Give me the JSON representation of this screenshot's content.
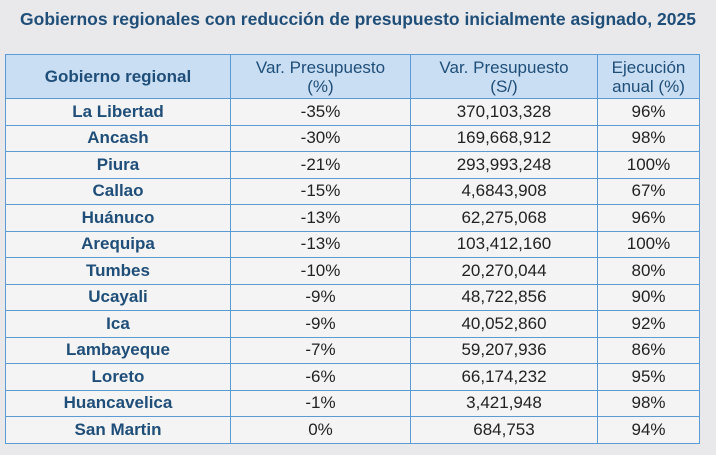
{
  "title": "Gobiernos regionales con reducción de presupuesto inicialmente asignado, 2025",
  "table": {
    "headers": [
      [
        "Gobierno regional"
      ],
      [
        "Var. Presupuesto",
        "(%)"
      ],
      [
        "Var. Presupuesto",
        "(S/)"
      ],
      [
        "Ejecución",
        "anual (%)"
      ]
    ],
    "rows": [
      [
        "La Libertad",
        "-35%",
        "370,103,328",
        "96%"
      ],
      [
        "Ancash",
        "-30%",
        "169,668,912",
        "98%"
      ],
      [
        "Piura",
        "-21%",
        "293,993,248",
        "100%"
      ],
      [
        "Callao",
        "-15%",
        "4,6843,908",
        "67%"
      ],
      [
        "Huánuco",
        "-13%",
        "62,275,068",
        "96%"
      ],
      [
        "Arequipa",
        "-13%",
        "103,412,160",
        "100%"
      ],
      [
        "Tumbes",
        "-10%",
        "20,270,044",
        "80%"
      ],
      [
        "Ucayali",
        "-9%",
        "48,722,856",
        "90%"
      ],
      [
        "Ica",
        "-9%",
        "40,052,860",
        "92%"
      ],
      [
        "Lambayeque",
        "-7%",
        "59,207,936",
        "86%"
      ],
      [
        "Loreto",
        "-6%",
        "66,174,232",
        "95%"
      ],
      [
        "Huancavelica",
        "-1%",
        "3,421,948",
        "98%"
      ],
      [
        "San Martin",
        "0%",
        "684,753",
        "94%"
      ]
    ]
  }
}
